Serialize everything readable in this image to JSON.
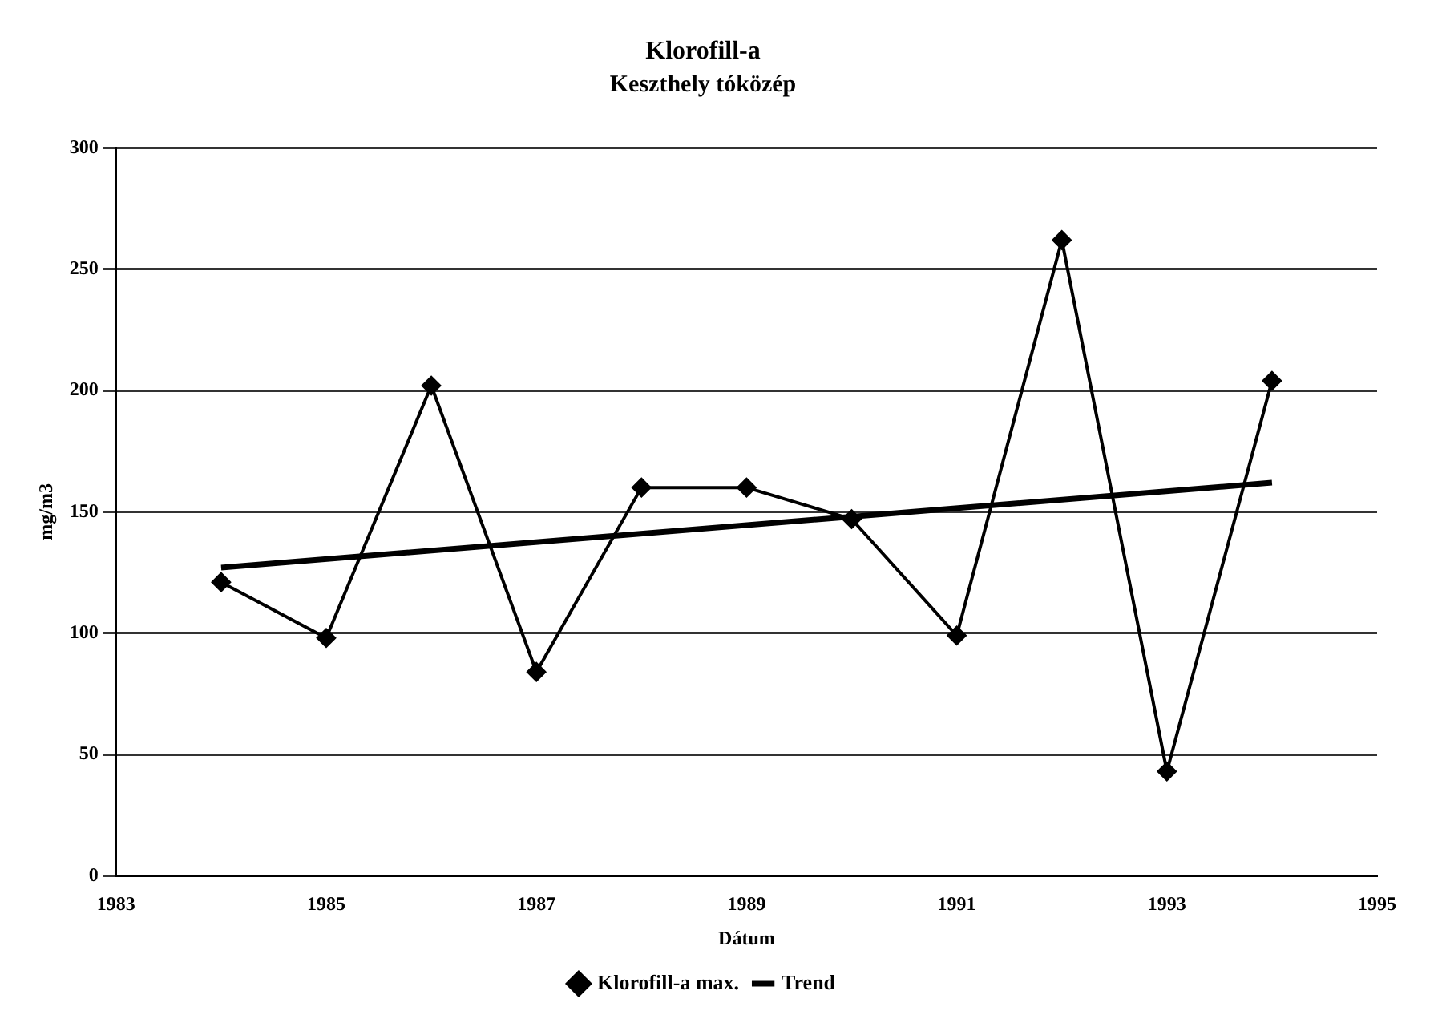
{
  "chart_data": {
    "type": "line",
    "title": "Klorofill-a",
    "subtitle": "Keszthely tóközép",
    "xlabel": "Dátum",
    "ylabel": "mg/m3",
    "x": [
      1984,
      1985,
      1986,
      1987,
      1988,
      1989,
      1990,
      1991,
      1992,
      1993,
      1994
    ],
    "series": [
      {
        "name": "Klorofill-a max.",
        "color": "#000000",
        "values": [
          121,
          98,
          202,
          84,
          160,
          160,
          147,
          99,
          262,
          43,
          204
        ],
        "marker": "diamond"
      },
      {
        "name": "Trend",
        "type": "line",
        "color": "#000000",
        "x": [
          1984,
          1994
        ],
        "values": [
          127,
          162
        ],
        "marker": "none"
      }
    ],
    "xlim": [
      1983,
      1995
    ],
    "xticks": [
      1983,
      1985,
      1987,
      1989,
      1991,
      1993,
      1995
    ],
    "ylim": [
      0,
      300
    ],
    "yticks": [
      0,
      50,
      100,
      150,
      200,
      250,
      300
    ],
    "grid": "y",
    "legend": "bottom",
    "line_style": "solid"
  }
}
